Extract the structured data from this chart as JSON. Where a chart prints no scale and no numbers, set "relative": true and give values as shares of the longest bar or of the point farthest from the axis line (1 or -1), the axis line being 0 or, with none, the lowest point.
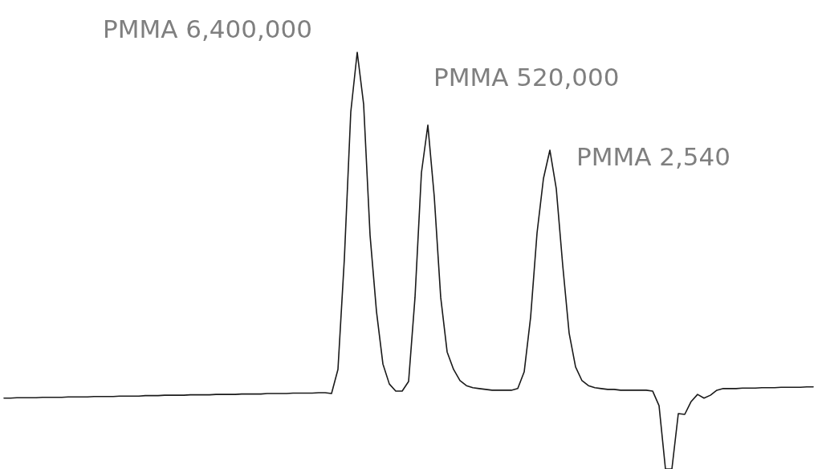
{
  "chart_data": {
    "type": "line",
    "relative": true,
    "color": "#1a1a1a",
    "line_style": "solid",
    "grid": false,
    "tick_labels": false,
    "categories": [
      null,
      null,
      null,
      null,
      null,
      null,
      null,
      null,
      null,
      null,
      null,
      null,
      null,
      null,
      null,
      null,
      null,
      null,
      null,
      null,
      null,
      null,
      null,
      null,
      null,
      null,
      null,
      null,
      null,
      null,
      null,
      null,
      null,
      null,
      null,
      null,
      null,
      null,
      null,
      null,
      null,
      null,
      null,
      null,
      null,
      null,
      null,
      null,
      null,
      null,
      null,
      null,
      null,
      null,
      null,
      null,
      null,
      null,
      null,
      null,
      null,
      null,
      null,
      null,
      null,
      null,
      null,
      null,
      null,
      null,
      null,
      null,
      null,
      null,
      null,
      null,
      null,
      null,
      null,
      null,
      null,
      null,
      null,
      null,
      null,
      null,
      null,
      null,
      null,
      null,
      null,
      null,
      null,
      null,
      null,
      null,
      null,
      null,
      null,
      null,
      null,
      null,
      null,
      null,
      null,
      null,
      null,
      null,
      null,
      null,
      null,
      null,
      null,
      null,
      null,
      null,
      null,
      null,
      null,
      null,
      null,
      null,
      null,
      null,
      null,
      null,
      null
    ],
    "values": [
      0.17,
      0.17,
      0.171,
      0.171,
      0.171,
      0.171,
      0.172,
      0.172,
      0.172,
      0.172,
      0.173,
      0.173,
      0.173,
      0.173,
      0.174,
      0.174,
      0.174,
      0.174,
      0.175,
      0.175,
      0.175,
      0.175,
      0.176,
      0.176,
      0.176,
      0.177,
      0.177,
      0.177,
      0.177,
      0.178,
      0.178,
      0.178,
      0.178,
      0.179,
      0.179,
      0.179,
      0.179,
      0.18,
      0.18,
      0.18,
      0.18,
      0.181,
      0.181,
      0.181,
      0.181,
      0.182,
      0.182,
      0.182,
      0.182,
      0.183,
      0.183,
      0.181,
      0.239,
      0.505,
      0.857,
      1,
      0.875,
      0.561,
      0.378,
      0.252,
      0.204,
      0.187,
      0.187,
      0.21,
      0.412,
      0.711,
      0.825,
      0.653,
      0.412,
      0.281,
      0.239,
      0.212,
      0.2,
      0.195,
      0.193,
      0.191,
      0.189,
      0.189,
      0.189,
      0.189,
      0.193,
      0.233,
      0.364,
      0.566,
      0.697,
      0.765,
      0.672,
      0.489,
      0.326,
      0.245,
      0.212,
      0.2,
      0.195,
      0.193,
      0.191,
      0.191,
      0.189,
      0.189,
      0.189,
      0.189,
      0.189,
      0.187,
      0.152,
      0,
      0,
      0.133,
      0.131,
      0.162,
      0.179,
      0.17,
      0.177,
      0.189,
      0.193,
      0.193,
      0.193,
      0.194,
      0.194,
      0.194,
      0.195,
      0.195,
      0.195,
      0.196,
      0.196,
      0.196,
      0.196,
      0.197,
      0.197
    ],
    "annotations": [
      "PMMA 6,400,000",
      "PMMA 520,000",
      "PMMA 2,540"
    ]
  }
}
